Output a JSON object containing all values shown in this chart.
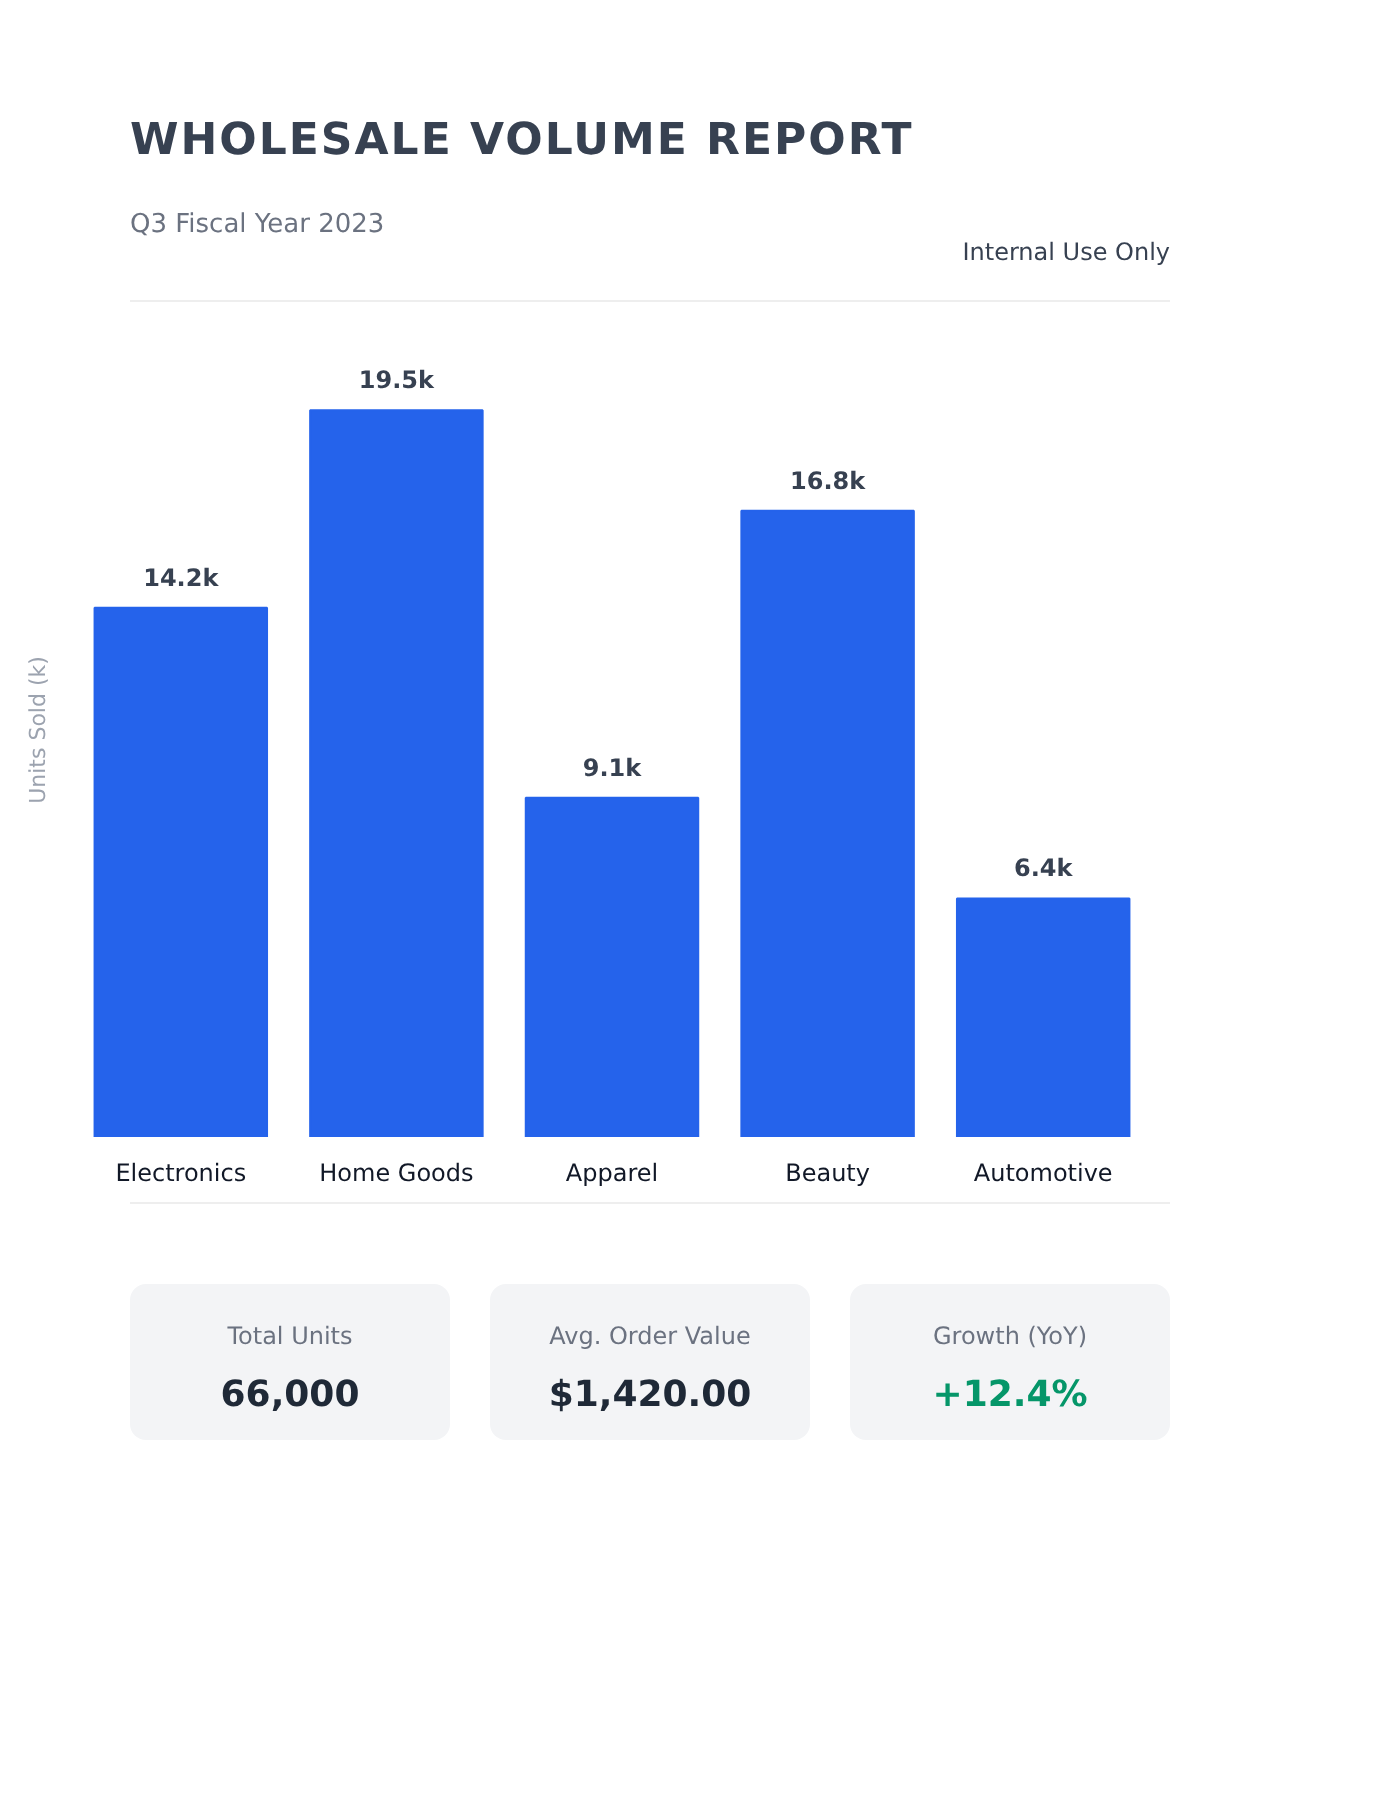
{
  "chart_data": {
    "type": "bar",
    "title": "WHOLESALE VOLUME REPORT",
    "subtitle": "Q3 Fiscal Year 2023",
    "ylabel": "Units Sold (k)",
    "categories": [
      "Electronics",
      "Home Goods",
      "Apparel",
      "Beauty",
      "Automotive"
    ],
    "values": [
      14.2,
      19.5,
      9.1,
      16.8,
      6.4
    ],
    "value_labels": [
      "14.2k",
      "19.5k",
      "9.1k",
      "16.8k",
      "6.4k"
    ],
    "color": "#2563eb",
    "grid": false,
    "annotations": [
      "Internal Use Only",
      "Total Units",
      "66,000",
      "Avg. Order Value",
      "$1,420.00",
      "Growth (YoY)",
      "+12.4%"
    ]
  }
}
